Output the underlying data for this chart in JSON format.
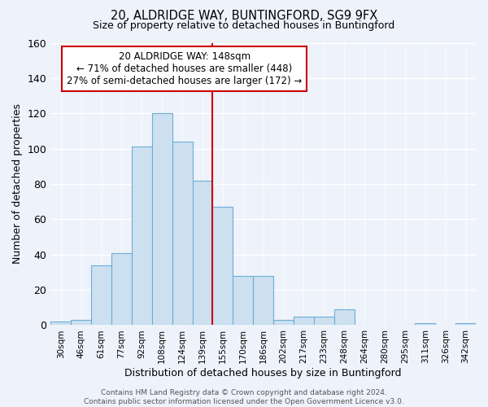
{
  "title_line1": "20, ALDRIDGE WAY, BUNTINGFORD, SG9 9FX",
  "title_line2": "Size of property relative to detached houses in Buntingford",
  "xlabel": "Distribution of detached houses by size in Buntingford",
  "ylabel": "Number of detached properties",
  "bar_color": "#cce0f0",
  "bar_edge_color": "#6baed6",
  "background_color": "#eef2fb",
  "grid_color": "#ffffff",
  "bin_labels": [
    "30sqm",
    "46sqm",
    "61sqm",
    "77sqm",
    "92sqm",
    "108sqm",
    "124sqm",
    "139sqm",
    "155sqm",
    "170sqm",
    "186sqm",
    "202sqm",
    "217sqm",
    "233sqm",
    "248sqm",
    "264sqm",
    "280sqm",
    "295sqm",
    "311sqm",
    "326sqm",
    "342sqm"
  ],
  "bar_heights": [
    2,
    3,
    34,
    41,
    101,
    120,
    104,
    82,
    67,
    28,
    28,
    3,
    5,
    5,
    9,
    0,
    0,
    0,
    1,
    0,
    1
  ],
  "ylim": [
    0,
    160
  ],
  "yticks": [
    0,
    20,
    40,
    60,
    80,
    100,
    120,
    140,
    160
  ],
  "vline_position": 8,
  "vline_color": "#cc0000",
  "annotation_title": "20 ALDRIDGE WAY: 148sqm",
  "annotation_line2": "← 71% of detached houses are smaller (448)",
  "annotation_line3": "27% of semi-detached houses are larger (172) →",
  "annotation_box_facecolor": "#ffffff",
  "annotation_box_edgecolor": "#cc0000",
  "footer_line1": "Contains HM Land Registry data © Crown copyright and database right 2024.",
  "footer_line2": "Contains public sector information licensed under the Open Government Licence v3.0."
}
